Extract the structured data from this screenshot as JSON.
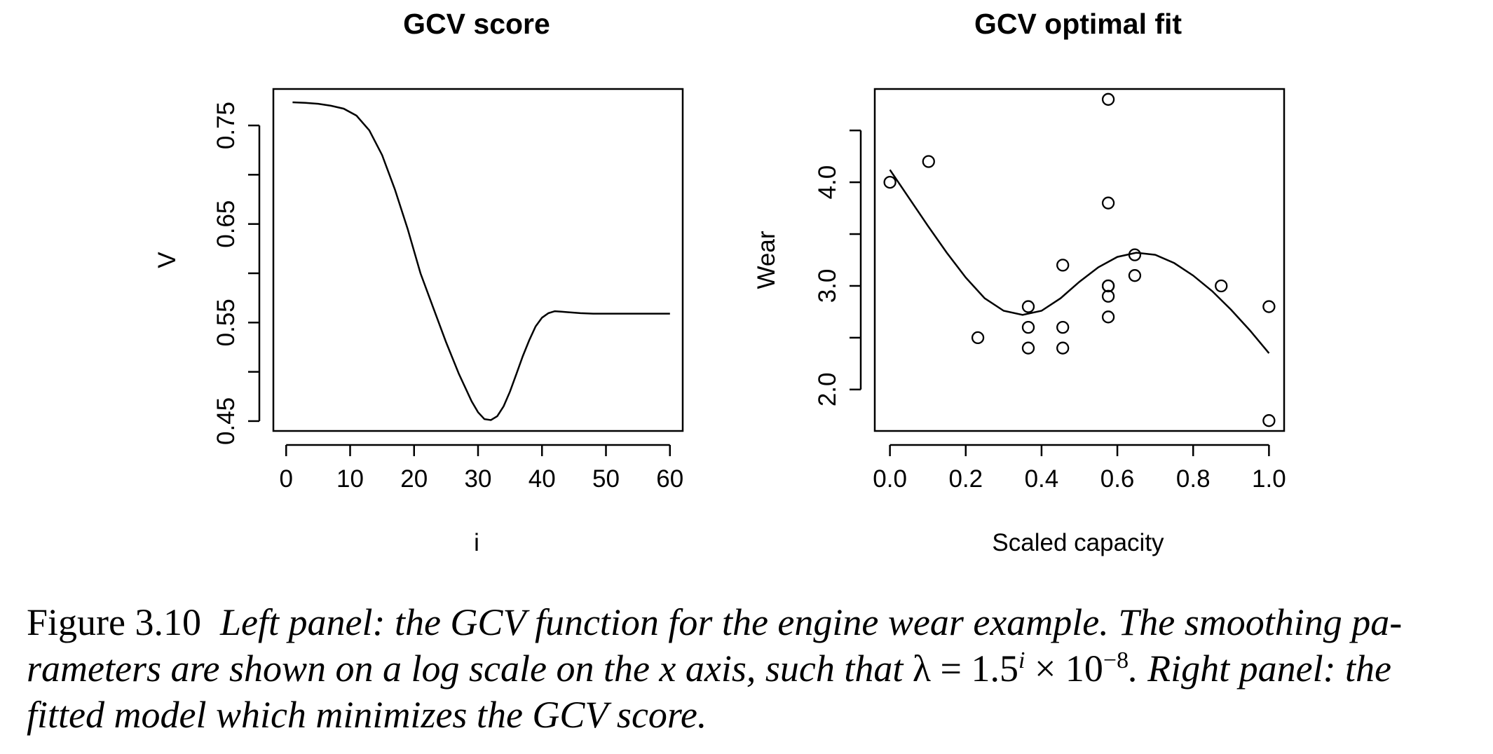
{
  "caption": {
    "label": "Figure 3.10",
    "text1": "Left panel: the GCV function for the engine wear example. The smoothing pa-rameters are shown on a log scale on the x axis, such that ",
    "math_lambda": "λ = 1.5",
    "math_exp_i": "i",
    "math_times": " × 10",
    "math_exp_neg8": "−8",
    "text2": ". Right panel: the fitted model which minimizes the GCV score."
  },
  "chart_data": [
    {
      "type": "line",
      "title": "GCV score",
      "xlabel": "i",
      "ylabel": "V",
      "xlim": [
        -2,
        62
      ],
      "ylim": [
        0.44,
        0.787
      ],
      "xticks": [
        0,
        10,
        20,
        30,
        40,
        50,
        60
      ],
      "xtick_labels": [
        "0",
        "10",
        "20",
        "30",
        "40",
        "50",
        "60"
      ],
      "yticks": [
        0.45,
        0.5,
        0.55,
        0.6,
        0.65,
        0.7,
        0.75
      ],
      "ytick_labels": [
        "0.45",
        "",
        "0.55",
        "",
        "0.65",
        "",
        "0.75"
      ],
      "series": [
        {
          "x": [
            1,
            3,
            5,
            7,
            9,
            11,
            13,
            15,
            17,
            19,
            21,
            23,
            25,
            27,
            29,
            30,
            31,
            32,
            33,
            34,
            35,
            36,
            37,
            38,
            39,
            40,
            41,
            42,
            43,
            44,
            46,
            48,
            50,
            55,
            60
          ],
          "y": [
            0.7735,
            0.773,
            0.772,
            0.77,
            0.767,
            0.76,
            0.745,
            0.72,
            0.685,
            0.645,
            0.6,
            0.565,
            0.53,
            0.498,
            0.47,
            0.459,
            0.452,
            0.451,
            0.455,
            0.465,
            0.48,
            0.498,
            0.516,
            0.532,
            0.546,
            0.555,
            0.5595,
            0.5615,
            0.561,
            0.5605,
            0.5595,
            0.559,
            0.559,
            0.559,
            0.559
          ]
        }
      ]
    },
    {
      "type": "scatter",
      "title": "GCV optimal fit",
      "xlabel": "Scaled capacity",
      "ylabel": "Wear",
      "xlim": [
        -0.04,
        1.04
      ],
      "ylim": [
        1.6,
        4.9
      ],
      "xticks": [
        0.0,
        0.2,
        0.4,
        0.6,
        0.8,
        1.0
      ],
      "xtick_labels": [
        "0.0",
        "0.2",
        "0.4",
        "0.6",
        "0.8",
        "1.0"
      ],
      "yticks": [
        2.0,
        2.5,
        3.0,
        3.5,
        4.0,
        4.5
      ],
      "ytick_labels": [
        "2.0",
        "",
        "3.0",
        "",
        "4.0",
        ""
      ],
      "points": {
        "x": [
          0.0,
          0.102,
          0.232,
          0.365,
          0.365,
          0.365,
          0.456,
          0.456,
          0.456,
          0.576,
          0.576,
          0.576,
          0.576,
          0.576,
          0.576,
          0.646,
          0.646,
          0.874,
          1.0,
          1.0
        ],
        "y": [
          4.0,
          4.2,
          2.5,
          2.8,
          2.6,
          2.4,
          3.2,
          2.6,
          2.4,
          4.8,
          3.8,
          3.0,
          2.9,
          2.7,
          3.0,
          3.3,
          3.1,
          3.0,
          2.8,
          1.7
        ]
      },
      "series": [
        {
          "name": "",
          "x": [
            0.0,
            0.05,
            0.1,
            0.15,
            0.2,
            0.25,
            0.3,
            0.35,
            0.4,
            0.45,
            0.5,
            0.55,
            0.6,
            0.65,
            0.7,
            0.75,
            0.8,
            0.85,
            0.9,
            0.95,
            1.0
          ],
          "y": [
            4.12,
            3.85,
            3.58,
            3.32,
            3.08,
            2.88,
            2.76,
            2.72,
            2.76,
            2.88,
            3.04,
            3.18,
            3.28,
            3.32,
            3.3,
            3.22,
            3.1,
            2.95,
            2.77,
            2.57,
            2.35
          ]
        }
      ]
    }
  ]
}
